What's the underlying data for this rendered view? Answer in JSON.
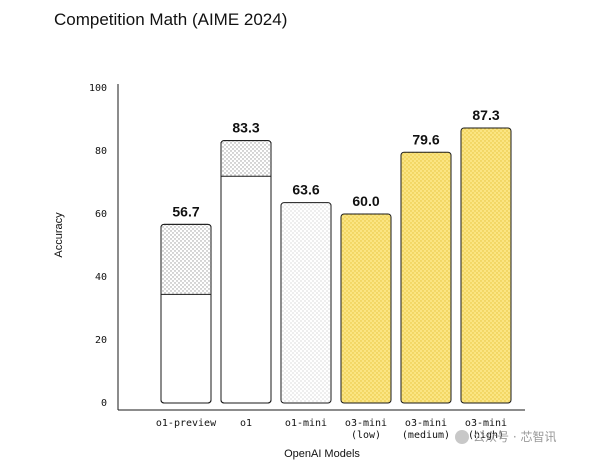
{
  "chart_data": {
    "type": "bar",
    "title": "Competition Math (AIME 2024)",
    "xlabel": "OpenAI Models",
    "ylabel": "Accuracy",
    "ylim": [
      0,
      100
    ],
    "yticks": [
      "0",
      "20",
      "40",
      "60",
      "80",
      "100"
    ],
    "grid": false,
    "categories": [
      {
        "line1": "o1-preview",
        "line2": ""
      },
      {
        "line1": "o1",
        "line2": ""
      },
      {
        "line1": "o1-mini",
        "line2": ""
      },
      {
        "line1": "o3-mini",
        "line2": "(low)"
      },
      {
        "line1": "o3-mini",
        "line2": "(medium)"
      },
      {
        "line1": "o3-mini",
        "line2": "(high)"
      }
    ],
    "values": [
      56.7,
      83.3,
      63.6,
      60.0,
      79.6,
      87.3
    ],
    "value_labels": [
      "56.7",
      "83.3",
      "63.6",
      "60.0",
      "79.6",
      "87.3"
    ],
    "solid_portion": [
      34.5,
      72.0,
      null,
      null,
      null,
      null
    ],
    "bar_styles": [
      "white-dotted-top",
      "white-dotted-top",
      "light-dotted",
      "yellow",
      "yellow",
      "yellow"
    ]
  },
  "colors": {
    "yellow_fill": "#fbe582",
    "yellow_dot": "#e6c43c",
    "gray_dot": "#9a9a9a",
    "bar_stroke": "#1a1a1a"
  },
  "watermark": "公众号 · 芯智讯"
}
